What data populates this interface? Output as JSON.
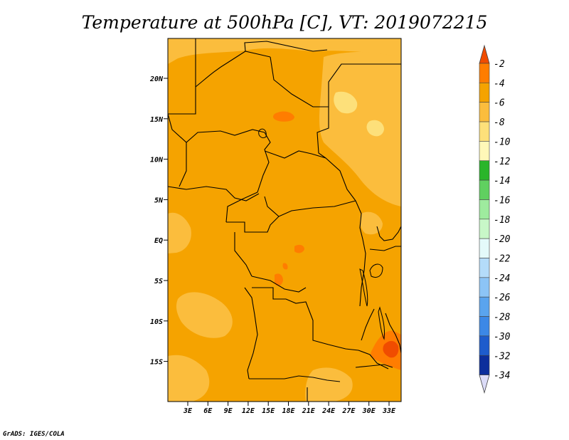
{
  "title": "Temperature at 500hPa [C], VT: 2019072215",
  "credit": "GrADS: IGES/COLA",
  "map": {
    "variable": "Temperature",
    "level": "500hPa",
    "units": "C",
    "valid_time": "2019072215",
    "lat_ticks": [
      "20N",
      "15N",
      "10N",
      "5N",
      "EQ",
      "5S",
      "10S",
      "15S"
    ],
    "lon_ticks": [
      "3E",
      "6E",
      "9E",
      "12E",
      "15E",
      "18E",
      "21E",
      "24E",
      "27E",
      "30E",
      "33E"
    ],
    "base_color": "#f5a300"
  },
  "colorbar": {
    "labels": [
      "-2",
      "-4",
      "-6",
      "-8",
      "-10",
      "-12",
      "-14",
      "-16",
      "-18",
      "-20",
      "-22",
      "-24",
      "-26",
      "-28",
      "-30",
      "-32",
      "-34"
    ],
    "colors": [
      "#f04c00",
      "#ff7d00",
      "#f5a300",
      "#fbbd3d",
      "#fde07a",
      "#fff8b8",
      "#2ab52a",
      "#60d060",
      "#9eeb9e",
      "#c8f7c8",
      "#e4fafa",
      "#b4dcfa",
      "#8cc4f6",
      "#5aa4ee",
      "#3c88e6",
      "#1e5ccc",
      "#0c2e9c",
      "#0a0a64",
      "#dcdcf8"
    ]
  }
}
